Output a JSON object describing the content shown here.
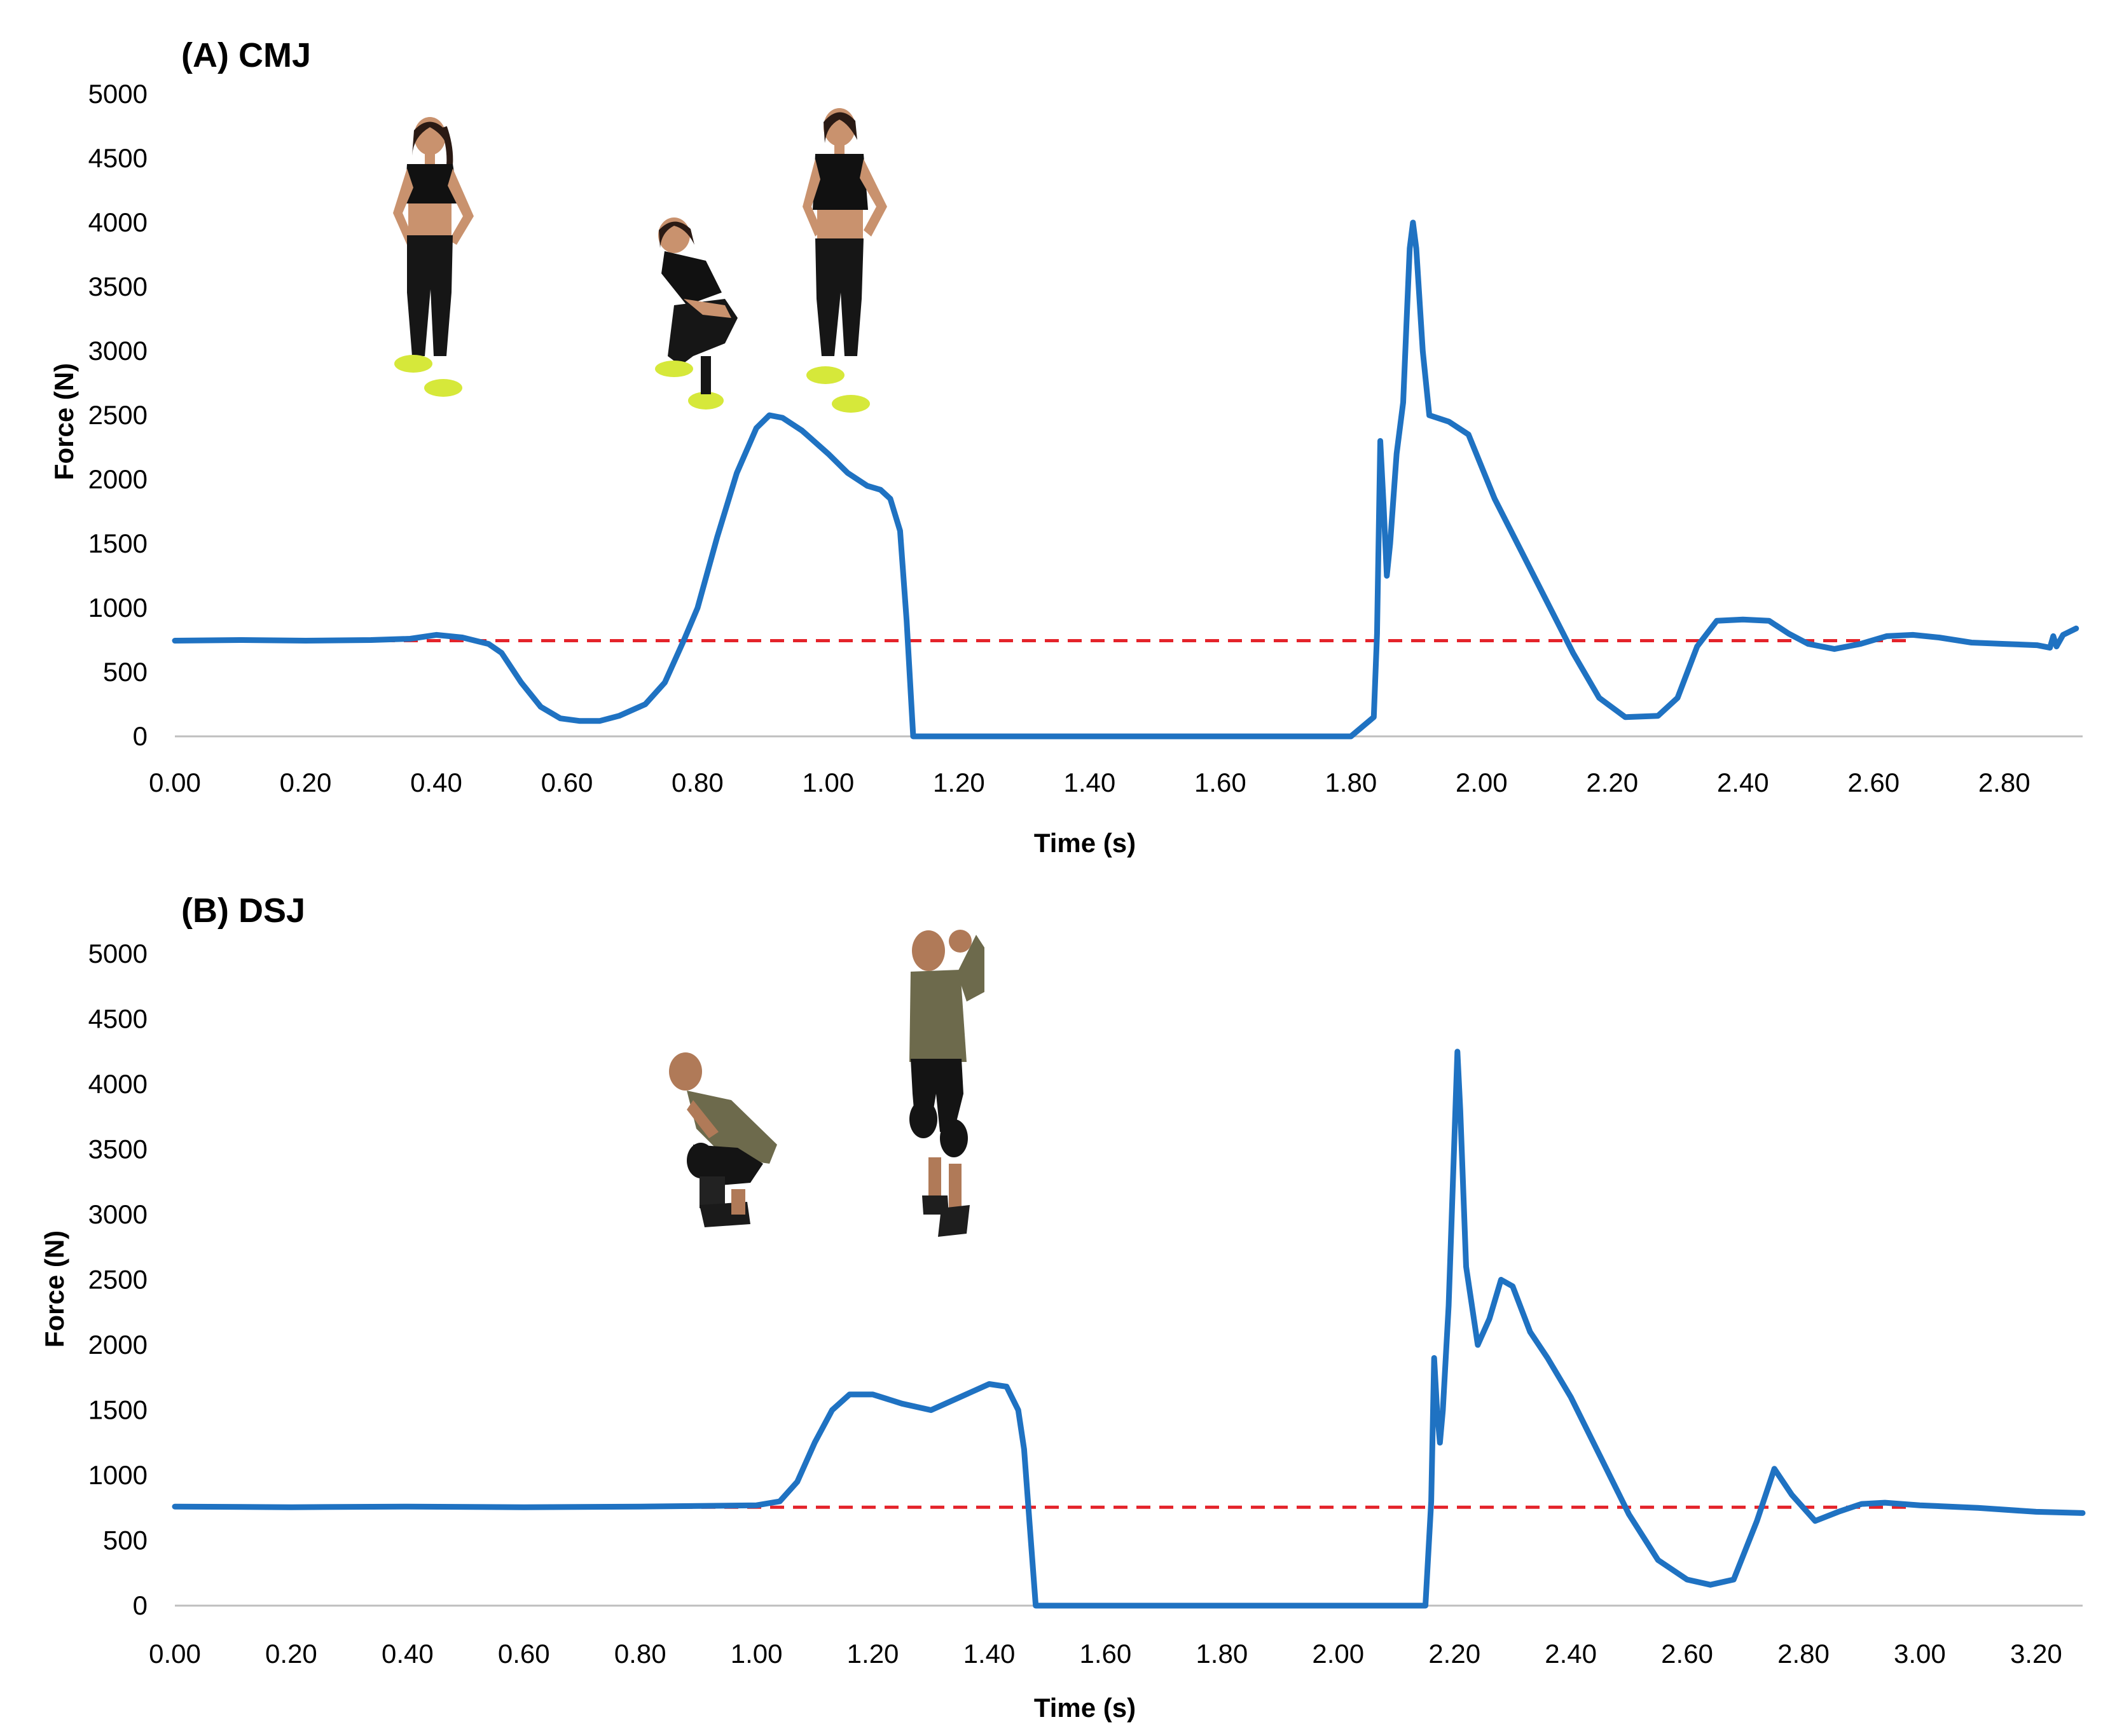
{
  "figure": {
    "panels": [
      {
        "title": "(A) CMJ",
        "xlabel": "Time (s)",
        "ylabel": "Force (N)"
      },
      {
        "title": "(B) DSJ",
        "xlabel": "Time (s)",
        "ylabel": "Force (N)"
      }
    ]
  },
  "colors": {
    "force_line": "#1f72c2",
    "reference_line": "#e4232a",
    "axis": "#bfbfbf"
  },
  "chart_data": [
    {
      "type": "line",
      "title": "(A) CMJ",
      "xlabel": "Time (s)",
      "ylabel": "Force (N)",
      "xlim": [
        0,
        2.92
      ],
      "ylim": [
        0,
        5000
      ],
      "x_ticks": [
        "0.00",
        "0.20",
        "0.40",
        "0.60",
        "0.80",
        "1.00",
        "1.20",
        "1.40",
        "1.60",
        "1.80",
        "2.00",
        "2.20",
        "2.40",
        "2.60",
        "2.80"
      ],
      "y_ticks": [
        "0",
        "500",
        "1000",
        "1500",
        "2000",
        "2500",
        "3000",
        "3500",
        "4000",
        "4500",
        "5000"
      ],
      "grid": false,
      "reference_line": {
        "y": 745,
        "style": "dashed"
      },
      "series": [
        {
          "x": [
            0.0,
            0.1,
            0.2,
            0.3,
            0.36,
            0.4,
            0.44,
            0.48,
            0.5,
            0.53,
            0.56,
            0.59,
            0.62,
            0.65,
            0.68,
            0.72,
            0.75,
            0.78,
            0.8,
            0.83,
            0.86,
            0.89,
            0.91,
            0.93,
            0.96,
            1.0,
            1.03,
            1.06,
            1.08,
            1.095,
            1.11,
            1.12,
            1.13,
            1.2,
            1.4,
            1.6,
            1.8,
            1.835,
            1.84,
            1.845,
            1.85,
            1.855,
            1.86,
            1.87,
            1.88,
            1.885,
            1.89,
            1.895,
            1.9,
            1.91,
            1.92,
            1.95,
            1.98,
            2.02,
            2.06,
            2.1,
            2.14,
            2.18,
            2.22,
            2.27,
            2.3,
            2.33,
            2.36,
            2.4,
            2.44,
            2.47,
            2.5,
            2.54,
            2.58,
            2.62,
            2.66,
            2.7,
            2.75,
            2.8,
            2.85,
            2.87,
            2.875,
            2.88,
            2.89,
            2.91
          ],
          "y": [
            745,
            750,
            745,
            750,
            760,
            790,
            770,
            720,
            650,
            420,
            230,
            140,
            120,
            120,
            160,
            250,
            420,
            760,
            1000,
            1550,
            2050,
            2400,
            2500,
            2480,
            2380,
            2200,
            2050,
            1950,
            1920,
            1850,
            1600,
            900,
            0,
            0,
            0,
            0,
            0,
            150,
            800,
            2300,
            1800,
            1250,
            1500,
            2200,
            2600,
            3200,
            3800,
            4000,
            3800,
            3000,
            2500,
            2450,
            2350,
            1850,
            1450,
            1050,
            650,
            300,
            150,
            160,
            300,
            700,
            900,
            910,
            900,
            800,
            720,
            680,
            720,
            780,
            790,
            770,
            730,
            720,
            710,
            690,
            780,
            700,
            790,
            840
          ]
        }
      ]
    },
    {
      "type": "line",
      "title": "(B) DSJ",
      "xlabel": "Time (s)",
      "ylabel": "Force (N)",
      "xlim": [
        0,
        3.28
      ],
      "ylim": [
        0,
        5000
      ],
      "x_ticks": [
        "0.00",
        "0.20",
        "0.40",
        "0.60",
        "0.80",
        "1.00",
        "1.20",
        "1.40",
        "1.60",
        "1.80",
        "2.00",
        "2.20",
        "2.40",
        "2.60",
        "2.80",
        "3.00",
        "3.20"
      ],
      "y_ticks": [
        "0",
        "500",
        "1000",
        "1500",
        "2000",
        "2500",
        "3000",
        "3500",
        "4000",
        "4500",
        "5000"
      ],
      "grid": false,
      "reference_line": {
        "y": 755,
        "style": "dashed"
      },
      "series": [
        {
          "x": [
            0.0,
            0.2,
            0.4,
            0.6,
            0.8,
            1.0,
            1.04,
            1.07,
            1.1,
            1.13,
            1.16,
            1.2,
            1.25,
            1.3,
            1.35,
            1.4,
            1.43,
            1.45,
            1.46,
            1.47,
            1.48,
            1.6,
            1.8,
            2.0,
            2.15,
            2.16,
            2.165,
            2.17,
            2.175,
            2.18,
            2.19,
            2.2,
            2.205,
            2.21,
            2.22,
            2.24,
            2.26,
            2.28,
            2.3,
            2.33,
            2.36,
            2.4,
            2.45,
            2.5,
            2.55,
            2.6,
            2.64,
            2.68,
            2.72,
            2.75,
            2.78,
            2.82,
            2.86,
            2.9,
            2.94,
            3.0,
            3.1,
            3.2,
            3.28
          ],
          "y": [
            760,
            755,
            760,
            755,
            760,
            770,
            800,
            950,
            1250,
            1500,
            1620,
            1620,
            1550,
            1500,
            1600,
            1700,
            1680,
            1500,
            1200,
            600,
            0,
            0,
            0,
            0,
            0,
            800,
            1900,
            1500,
            1250,
            1500,
            2300,
            3600,
            4250,
            3800,
            2600,
            2000,
            2200,
            2500,
            2450,
            2100,
            1900,
            1600,
            1150,
            700,
            350,
            200,
            160,
            200,
            650,
            1050,
            850,
            650,
            720,
            780,
            790,
            770,
            750,
            720,
            710
          ]
        }
      ]
    }
  ]
}
